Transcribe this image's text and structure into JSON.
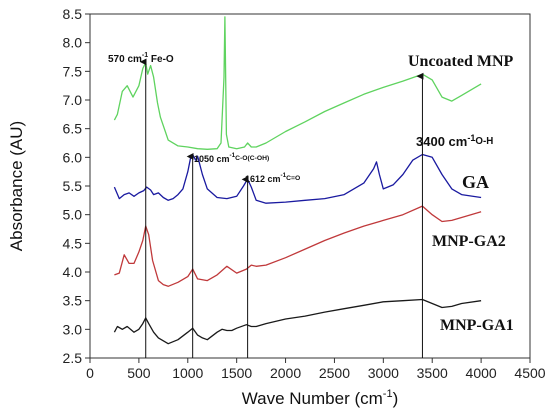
{
  "chart_data": {
    "type": "line",
    "xlabel": "Wave Number (cm",
    "xlabel_sup": "-1",
    "xlabel_end": ")",
    "ylabel": "Absorbance (AU)",
    "xlim": [
      0,
      4500
    ],
    "ylim": [
      2.5,
      8.5
    ],
    "xticks": [
      0,
      500,
      1000,
      1500,
      2000,
      2500,
      3000,
      3500,
      4000,
      4500
    ],
    "yticks": [
      2.5,
      3.0,
      3.5,
      4.0,
      4.5,
      5.0,
      5.5,
      6.0,
      6.5,
      7.0,
      7.5,
      8.0,
      8.5
    ],
    "grid": false,
    "series": [
      {
        "name": "Uncoated MNP",
        "color": "#5fd35f",
        "x": [
          250,
          280,
          330,
          380,
          440,
          500,
          540,
          570,
          590,
          620,
          650,
          690,
          720,
          770,
          800,
          900,
          1000,
          1100,
          1200,
          1300,
          1340,
          1370,
          1380,
          1395,
          1420,
          1500,
          1580,
          1612,
          1650,
          1700,
          1800,
          2000,
          2200,
          2400,
          2600,
          2800,
          3000,
          3200,
          3400,
          3500,
          3600,
          3700,
          3800,
          4000
        ],
        "y": [
          6.65,
          6.75,
          7.15,
          7.25,
          7.05,
          7.25,
          7.55,
          7.65,
          7.45,
          7.6,
          7.4,
          6.95,
          6.7,
          6.45,
          6.3,
          6.2,
          6.18,
          6.15,
          6.14,
          6.15,
          6.25,
          7.4,
          8.45,
          6.4,
          6.18,
          6.15,
          6.18,
          6.25,
          6.18,
          6.18,
          6.25,
          6.45,
          6.62,
          6.8,
          6.95,
          7.1,
          7.22,
          7.33,
          7.45,
          7.35,
          7.05,
          6.98,
          7.08,
          7.28
        ]
      },
      {
        "name": "GA",
        "color": "#1a1aa0",
        "x": [
          250,
          300,
          350,
          400,
          450,
          500,
          550,
          580,
          620,
          650,
          700,
          750,
          800,
          850,
          900,
          950,
          1000,
          1030,
          1050,
          1080,
          1100,
          1150,
          1200,
          1300,
          1400,
          1500,
          1570,
          1612,
          1650,
          1700,
          1800,
          2000,
          2200,
          2400,
          2600,
          2800,
          2900,
          2930,
          2960,
          3000,
          3100,
          3200,
          3300,
          3400,
          3500,
          3600,
          3700,
          3800,
          4000
        ],
        "y": [
          5.48,
          5.28,
          5.35,
          5.38,
          5.32,
          5.38,
          5.42,
          5.48,
          5.43,
          5.35,
          5.38,
          5.3,
          5.25,
          5.28,
          5.35,
          5.45,
          5.75,
          6.0,
          6.05,
          5.95,
          6.02,
          5.7,
          5.45,
          5.3,
          5.28,
          5.32,
          5.5,
          5.62,
          5.48,
          5.25,
          5.2,
          5.22,
          5.25,
          5.28,
          5.35,
          5.55,
          5.8,
          5.92,
          5.7,
          5.45,
          5.52,
          5.7,
          5.95,
          6.05,
          6.0,
          5.7,
          5.45,
          5.35,
          5.3
        ]
      },
      {
        "name": "MNP-GA2",
        "color": "#c0393b",
        "x": [
          250,
          300,
          350,
          400,
          450,
          500,
          540,
          570,
          600,
          640,
          700,
          750,
          800,
          900,
          1000,
          1050,
          1100,
          1200,
          1300,
          1400,
          1500,
          1600,
          1650,
          1700,
          1800,
          2000,
          2200,
          2400,
          2600,
          2800,
          3000,
          3200,
          3400,
          3500,
          3600,
          3700,
          3800,
          4000
        ],
        "y": [
          3.95,
          3.98,
          4.3,
          4.15,
          4.15,
          4.35,
          4.55,
          4.8,
          4.65,
          4.2,
          3.85,
          3.78,
          3.75,
          3.82,
          3.92,
          4.05,
          3.88,
          3.85,
          3.95,
          4.1,
          3.98,
          4.05,
          4.12,
          4.1,
          4.12,
          4.25,
          4.4,
          4.55,
          4.68,
          4.8,
          4.9,
          5.0,
          5.15,
          5.0,
          4.88,
          4.9,
          4.95,
          5.05
        ]
      },
      {
        "name": "MNP-GA1",
        "color": "#1a1a1a",
        "x": [
          250,
          280,
          330,
          380,
          450,
          500,
          540,
          570,
          600,
          650,
          700,
          750,
          800,
          900,
          1000,
          1050,
          1100,
          1150,
          1200,
          1300,
          1350,
          1400,
          1450,
          1500,
          1600,
          1650,
          1700,
          1800,
          2000,
          2200,
          2400,
          2600,
          2800,
          3000,
          3200,
          3400,
          3500,
          3600,
          3700,
          3800,
          4000
        ],
        "y": [
          2.95,
          3.05,
          3.0,
          3.05,
          2.95,
          3.0,
          3.1,
          3.2,
          3.1,
          2.95,
          2.85,
          2.8,
          2.75,
          2.82,
          2.95,
          3.02,
          2.9,
          2.85,
          2.82,
          2.95,
          3.0,
          2.98,
          2.98,
          3.02,
          3.08,
          3.05,
          3.05,
          3.1,
          3.18,
          3.23,
          3.3,
          3.36,
          3.42,
          3.48,
          3.5,
          3.52,
          3.45,
          3.38,
          3.4,
          3.45,
          3.5
        ]
      }
    ],
    "series_labels": [
      {
        "text": "Uncoated MNP",
        "size": 16
      },
      {
        "text": "GA",
        "size": 18
      },
      {
        "text": "MNP-GA2",
        "size": 16
      },
      {
        "text": "MNP-GA1",
        "size": 16
      }
    ],
    "annotations": [
      {
        "main": "570 cm",
        "sup": "-1",
        "tail": " Fe-O",
        "x_value": 570,
        "y_top": 7.7,
        "y_bottom": 2.5
      },
      {
        "main": "1050 cm",
        "sup": "-1",
        "tail": "C-O(C-OH)",
        "x_value": 1050,
        "y_top": 6.05,
        "y_bottom": 2.5
      },
      {
        "main": "1612 cm",
        "sup": "-1",
        "tail": "C=O",
        "x_value": 1612,
        "y_top": 5.65,
        "y_bottom": 2.5
      },
      {
        "main": "3400 cm",
        "sup": "-1",
        "tail": "O-H",
        "x_value": 3400,
        "y_top": 7.45,
        "y_bottom": 2.5
      }
    ]
  }
}
